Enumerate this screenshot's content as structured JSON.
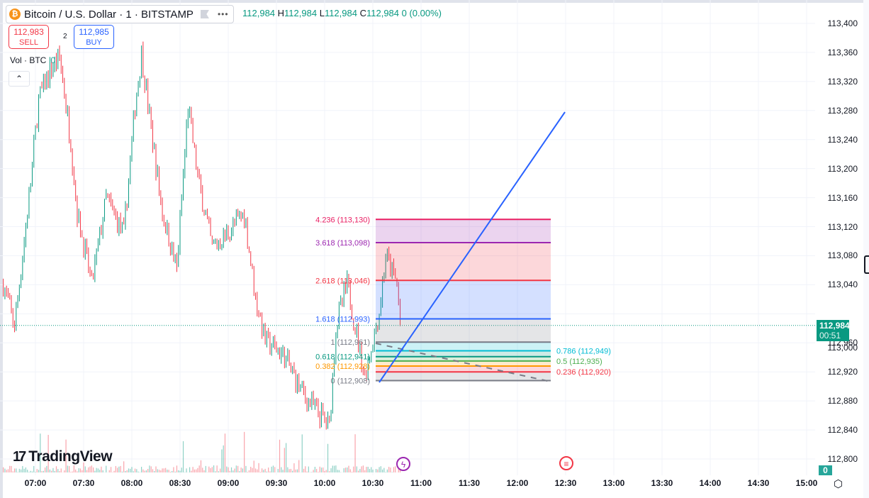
{
  "header": {
    "symbol_icon": "bitcoin-icon",
    "title": "Bitcoin / U.S. Dollar · 1 · BITSTAMP",
    "ohlc": {
      "o_label": "",
      "o": "112,984",
      "h_label": "H",
      "h": "112,984",
      "l_label": "L",
      "l": "112,984",
      "c_label": "C",
      "c": "112,984",
      "change": "0 (0.00%)"
    }
  },
  "trade": {
    "sell_price": "112,983",
    "sell_label": "SELL",
    "spread": "2",
    "buy_price": "112,985",
    "buy_label": "BUY"
  },
  "volume": {
    "label": "Vol · BTC",
    "value": "0"
  },
  "price_axis": {
    "ticks": [
      113400,
      113360,
      113320,
      113280,
      113240,
      113200,
      113160,
      113120,
      113080,
      113040,
      113000,
      112960,
      112920,
      112880,
      112840,
      112800
    ],
    "tick_labels": [
      "113,400",
      "113,360",
      "113,320",
      "113,280",
      "113,240",
      "113,200",
      "113,160",
      "113,120",
      "113,080",
      "113,040",
      "113,000",
      "112,960",
      "112,920",
      "112,880",
      "112,840",
      "112,800"
    ],
    "current_price": "112,984",
    "countdown": "00:51",
    "volume_badge": "0"
  },
  "time_axis": {
    "labels": [
      "07:00",
      "07:30",
      "08:00",
      "08:30",
      "09:00",
      "09:30",
      "10:00",
      "10:30",
      "11:00",
      "11:30",
      "12:00",
      "12:30",
      "13:00",
      "13:30",
      "14:00",
      "14:30",
      "15:00"
    ]
  },
  "price_path": [
    [
      "06:40",
      113041
    ],
    [
      "06:47",
      112983
    ],
    [
      "06:56",
      113159
    ],
    [
      "07:02",
      113295
    ],
    [
      "07:09",
      113335
    ],
    [
      "07:15",
      113354
    ],
    [
      "07:22",
      113237
    ],
    [
      "07:26",
      113139
    ],
    [
      "07:35",
      113041
    ],
    [
      "07:44",
      113159
    ],
    [
      "07:55",
      113110
    ],
    [
      "08:02",
      113286
    ],
    [
      "08:06",
      113359
    ],
    [
      "08:13",
      113237
    ],
    [
      "08:19",
      113139
    ],
    [
      "08:28",
      113061
    ],
    [
      "08:35",
      113286
    ],
    [
      "08:41",
      113188
    ],
    [
      "08:50",
      113090
    ],
    [
      "08:59",
      113110
    ],
    [
      "09:10",
      113139
    ],
    [
      "09:17",
      113022
    ],
    [
      "09:23",
      112963
    ],
    [
      "09:34",
      112944
    ],
    [
      "09:48",
      112885
    ],
    [
      "10:03",
      112846
    ],
    [
      "10:07",
      112983
    ],
    [
      "10:14",
      113041
    ],
    [
      "10:25",
      112914
    ],
    [
      "10:34",
      113002
    ],
    [
      "10:38",
      113080
    ],
    [
      "10:45",
      113041
    ],
    [
      "10:47",
      112984
    ]
  ],
  "fib_extension": {
    "levels": [
      {
        "ratio": "4.236",
        "price": "113,130",
        "value": 113130,
        "color": "#e91e63"
      },
      {
        "ratio": "3.618",
        "price": "113,098",
        "value": 113098,
        "color": "#9c27b0"
      },
      {
        "ratio": "2.618",
        "price": "113,046",
        "value": 113046,
        "color": "#f23645"
      },
      {
        "ratio": "1.618",
        "price": "112,993",
        "value": 112993,
        "color": "#2962ff"
      },
      {
        "ratio": "1",
        "price": "112,961",
        "value": 112961,
        "color": "#787b86"
      },
      {
        "ratio": "0.786",
        "price": "112,949",
        "value": 112949,
        "color": "#00bcd4"
      },
      {
        "ratio": "0.618",
        "price": "112,941",
        "value": 112941,
        "color": "#089981"
      },
      {
        "ratio": "0.5",
        "price": "112,935",
        "value": 112935,
        "color": "#4caf50"
      },
      {
        "ratio": "0.382",
        "price": "112,928",
        "value": 112928,
        "color": "#ff9800"
      },
      {
        "ratio": "0.236",
        "price": "112,920",
        "value": 112920,
        "color": "#f23645"
      },
      {
        "ratio": "0",
        "price": "112,908",
        "value": 112908,
        "color": "#787b86"
      }
    ]
  },
  "colors": {
    "up": "#089981",
    "down": "#f23645",
    "trendline": "#2962ff",
    "grid": "#f0f3fa"
  },
  "branding": {
    "logo": "TradingView"
  },
  "events": {
    "event1_icon": "lightning-icon",
    "event2_icon": "us-flag-icon"
  }
}
